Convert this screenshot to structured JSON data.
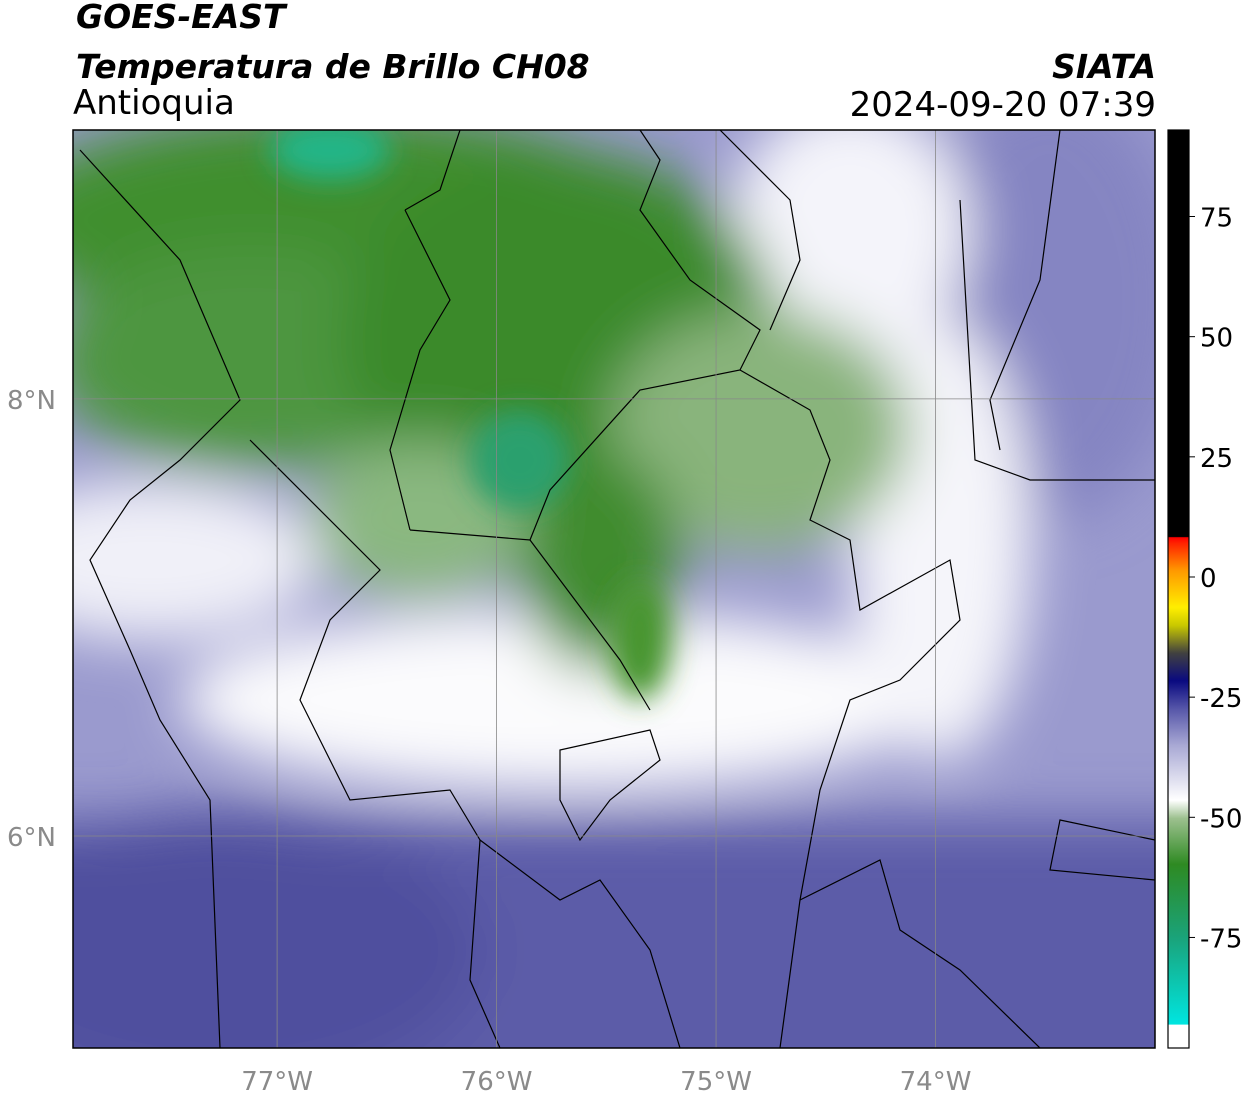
{
  "header": {
    "satellite": "GOES-EAST",
    "product": "Temperatura de Brillo CH08",
    "region": "Antioquia",
    "agency": "SIATA",
    "datetime": "2024-09-20 07:39"
  },
  "map": {
    "xlim": [
      -77.93,
      -73.0
    ],
    "ylim": [
      5.03,
      9.23
    ],
    "xticks": [
      {
        "value": -77,
        "label": "77°W"
      },
      {
        "value": -76,
        "label": "76°W"
      },
      {
        "value": -75,
        "label": "75°W"
      },
      {
        "value": -74,
        "label": "74°W"
      }
    ],
    "yticks": [
      {
        "value": 6,
        "label": "6°N"
      },
      {
        "value": 8,
        "label": "8°N"
      }
    ],
    "grid": true
  },
  "colorbar": {
    "lim": [
      -98,
      93
    ],
    "ticks": [
      75,
      50,
      25,
      0,
      -25,
      -50,
      -75
    ]
  }
}
